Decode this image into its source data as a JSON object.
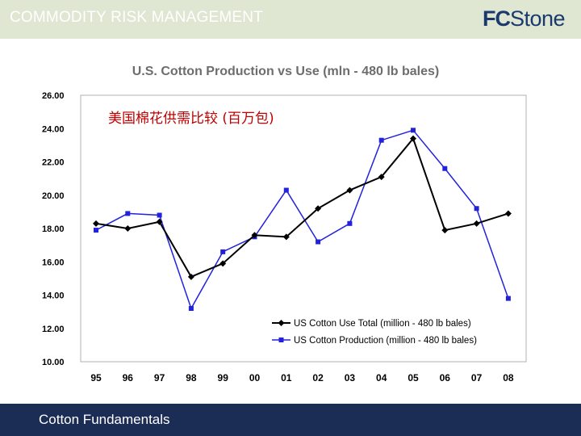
{
  "header": {
    "title": "COMMODITY RISK MANAGEMENT",
    "logo_fc": "FC",
    "logo_stone": "Stone"
  },
  "footer": {
    "label": "Cotton Fundamentals"
  },
  "colors": {
    "header_bg": "#dfe7d3",
    "footer_bg": "#1b2d55",
    "use_series": "#000000",
    "production_series": "#2222dd",
    "annotation": "#c00000"
  },
  "chart_data": {
    "type": "line",
    "title": "U.S. Cotton Production vs Use (mln - 480 lb bales)",
    "annotation": "美国棉花供需比较 (百万包)",
    "categories": [
      "95",
      "96",
      "97",
      "98",
      "99",
      "00",
      "01",
      "02",
      "03",
      "04",
      "05",
      "06",
      "07",
      "08"
    ],
    "y_ticks": [
      "26.00",
      "24.00",
      "22.00",
      "20.00",
      "18.00",
      "16.00",
      "14.00",
      "12.00",
      "10.00"
    ],
    "ylim": [
      10,
      26
    ],
    "legend_position": "bottom-right",
    "series": [
      {
        "name": "US Cotton Use Total (million - 480 lb bales)",
        "marker": "diamond",
        "values": [
          18.3,
          18.0,
          18.4,
          15.1,
          15.9,
          17.6,
          17.5,
          19.2,
          20.3,
          21.1,
          23.4,
          17.9,
          18.3,
          18.9
        ]
      },
      {
        "name": "US Cotton Production (million - 480 lb bales)",
        "marker": "square",
        "values": [
          17.9,
          18.9,
          18.8,
          13.2,
          16.6,
          17.5,
          20.3,
          17.2,
          18.3,
          23.3,
          23.9,
          21.6,
          19.2,
          13.8
        ]
      }
    ]
  }
}
